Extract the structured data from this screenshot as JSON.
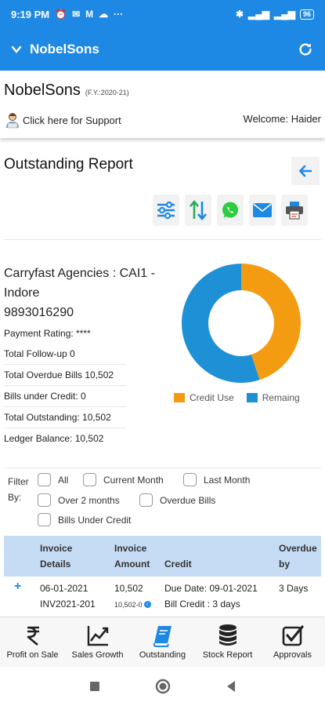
{
  "status_bar": {
    "time": "9:19 PM",
    "battery": "96"
  },
  "app_bar": {
    "title": "NobelSons"
  },
  "company": {
    "name": "NobelSons",
    "fy": "(F.Y.:2020-21)",
    "support_text": "Click here for Support",
    "welcome": "Welcome: Haider"
  },
  "report": {
    "title": "Outstanding Report"
  },
  "party": {
    "name": "Carryfast Agencies : CAI1 - Indore",
    "phone": "9893016290",
    "payment_rating": "Payment Rating: ****",
    "total_followup": "Total Follow-up 0",
    "total_overdue_bills": "Total Overdue Bills 10,502",
    "bills_under_credit": "Bills under Credit: 0",
    "total_outstanding": "Total Outstanding: 10,502",
    "ledger_balance": "Ledger Balance: 10,502"
  },
  "chart_data": {
    "type": "pie",
    "categories": [
      "Credit Use",
      "Remaing"
    ],
    "values": [
      45,
      55
    ],
    "colors": [
      "#f39c12",
      "#1e90d6"
    ]
  },
  "filter": {
    "label": "Filter By:",
    "options": [
      "All",
      "Current Month",
      "Last Month",
      "Over 2 months",
      "Overdue Bills",
      "Bills Under Credit"
    ]
  },
  "table": {
    "headers": {
      "invoice_details": "Invoice Details",
      "invoice_amount": "Invoice Amount",
      "credit": "Credit",
      "overdue_by": "Overdue by"
    },
    "rows": [
      {
        "date": "06-01-2021",
        "invoice_no": "INV2021-201",
        "amount": "10,502",
        "sub_amount": "10,502-0",
        "due_date": "Due Date: 09-01-2021",
        "bill_credit": "Bill Credit : 3 days",
        "overdue": "3 Days"
      }
    ]
  },
  "bottom_nav": [
    "Profit on Sale",
    "Sales Growth",
    "Outstanding",
    "Stock Report",
    "Approvals"
  ],
  "colors": {
    "primary": "#1e88e5",
    "table_header": "#c6dcf5"
  }
}
